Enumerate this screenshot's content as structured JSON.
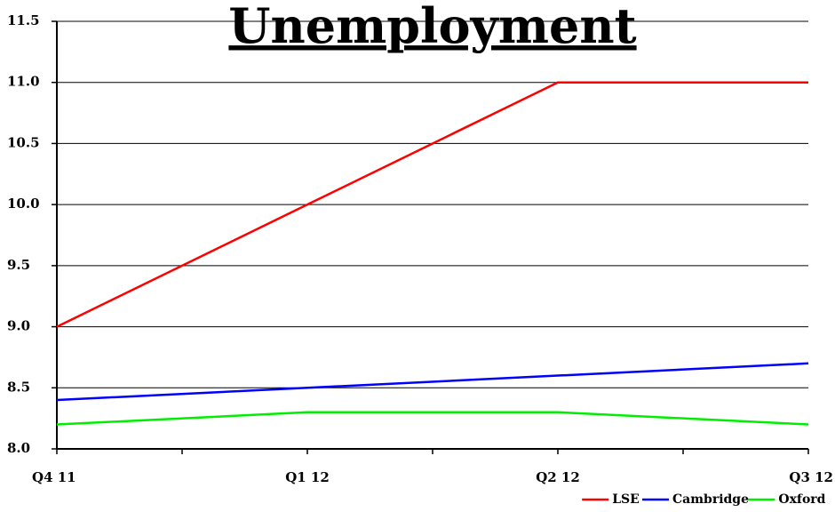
{
  "chart_data": {
    "type": "line",
    "title": "Unemployment",
    "categories": [
      "Q4 11",
      "Q1 12",
      "Q2 12",
      "Q3 12"
    ],
    "series": [
      {
        "name": "LSE",
        "color": "#ff0000",
        "values": [
          9.0,
          10.0,
          11.0,
          11.0
        ]
      },
      {
        "name": "Cambridge",
        "color": "#0000ff",
        "values": [
          8.4,
          8.5,
          8.6,
          8.7
        ]
      },
      {
        "name": "Oxford",
        "color": "#00ee00",
        "values": [
          8.2,
          8.3,
          8.3,
          8.2
        ]
      }
    ],
    "ylim": [
      8.0,
      11.5
    ],
    "yticks": [
      {
        "value": 8,
        "label": "8.0"
      },
      8.5,
      {
        "value": 9,
        "label": "9.0"
      },
      9.5,
      {
        "value": 10,
        "label": "10.0"
      },
      10.5,
      {
        "value": 11,
        "label": "11.0"
      },
      11.5
    ],
    "grid": true,
    "legend": "bottom-right"
  }
}
